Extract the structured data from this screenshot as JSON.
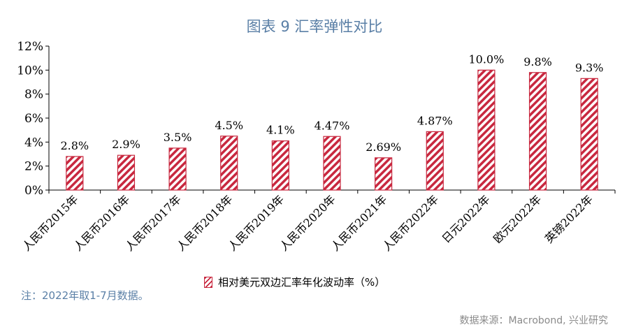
{
  "chart_data": {
    "type": "bar",
    "title": "图表 9 汇率弹性对比",
    "categories": [
      "人民币2015年",
      "人民币2016年",
      "人民币2017年",
      "人民币2018年",
      "人民币2019年",
      "人民币2020年",
      "人民币2021年",
      "人民币2022年",
      "日元2022年",
      "欧元2022年",
      "英镑2022年"
    ],
    "series": [
      {
        "name": "相对美元双边汇率年化波动率（%）",
        "values": [
          2.8,
          2.9,
          3.5,
          4.5,
          4.1,
          4.47,
          2.69,
          4.87,
          10.0,
          9.8,
          9.3
        ],
        "labels": [
          "2.8%",
          "2.9%",
          "3.5%",
          "4.5%",
          "4.1%",
          "4.47%",
          "2.69%",
          "4.87%",
          "10.0%",
          "9.8%",
          "9.3%"
        ]
      }
    ],
    "yticks": [
      "0%",
      "2%",
      "4%",
      "6%",
      "8%",
      "10%",
      "12%"
    ],
    "ylim": [
      0,
      12
    ],
    "grid": false,
    "legend_position": "bottom",
    "colors": {
      "bar": "#c8283f"
    }
  },
  "note": "注：2022年取1-7月数据。",
  "source": "数据来源：Macrobond, 兴业研究"
}
